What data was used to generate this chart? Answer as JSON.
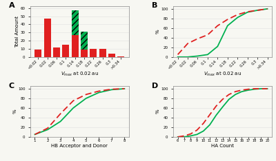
{
  "panel_A": {
    "categories": [
      "<0.02",
      "0.02",
      "0.06",
      "0.1",
      "0.14",
      "0.18",
      "0.22",
      "0.26",
      "0.3",
      ">0.34"
    ],
    "red_base": [
      9,
      47,
      12,
      15,
      27,
      9,
      10,
      10,
      4,
      1
    ],
    "green_top": [
      0,
      0,
      0,
      0,
      30,
      22,
      0,
      0,
      0,
      0
    ],
    "ylabel": "Total Amount",
    "xlabel": "$V_{max}$ at 0.02 au",
    "ylim": [
      0,
      62
    ]
  },
  "panel_B": {
    "categories": [
      "<0.02",
      "0.02",
      "0.06",
      "0.1",
      "0.14",
      "0.18",
      "0.22",
      "0.26",
      "0.3",
      ">0.34"
    ],
    "green_cum": [
      0,
      0,
      2,
      5,
      22,
      65,
      82,
      93,
      97,
      100
    ],
    "red_cum": [
      5,
      28,
      38,
      46,
      65,
      78,
      88,
      94,
      97,
      100
    ],
    "ylabel": "%",
    "xlabel": "$V_{max}$ at 0.02 au",
    "ylim": [
      0,
      105
    ],
    "yticks": [
      0,
      20,
      40,
      60,
      80,
      100
    ]
  },
  "panel_C": {
    "x": [
      1,
      2,
      3,
      4,
      5,
      6,
      7,
      8
    ],
    "green_cum": [
      5,
      15,
      32,
      60,
      80,
      92,
      98,
      100
    ],
    "red_cum": [
      5,
      18,
      48,
      75,
      88,
      95,
      99,
      100
    ],
    "ylabel": "%",
    "xlabel": "HB Acceptor and Donor",
    "ylim": [
      0,
      105
    ],
    "yticks": [
      0,
      20,
      40,
      60,
      80,
      100
    ]
  },
  "panel_D": {
    "x": [
      6,
      7,
      8,
      9,
      10,
      11,
      12,
      13,
      14,
      15,
      16,
      17,
      18,
      19,
      20
    ],
    "green_cum": [
      0,
      0,
      2,
      5,
      12,
      25,
      45,
      62,
      78,
      88,
      94,
      97,
      99,
      100,
      100
    ],
    "red_cum": [
      0,
      2,
      6,
      14,
      28,
      46,
      64,
      78,
      88,
      94,
      97,
      99,
      100,
      100,
      100
    ],
    "ylabel": "%",
    "xlabel": "HA Count",
    "ylim": [
      0,
      105
    ],
    "yticks": [
      0,
      20,
      40,
      60,
      80,
      100
    ]
  },
  "green_color": "#00b050",
  "red_color": "#e02020",
  "hatch_color": "#00b050",
  "bg_color": "#f7f7f2",
  "spine_color": "#888888",
  "grid_color": "#e0e0e0",
  "label_fontsize": 5,
  "tick_fontsize": 4.5,
  "panel_label_fontsize": 8,
  "line_width": 1.3,
  "bar_width": 0.75
}
